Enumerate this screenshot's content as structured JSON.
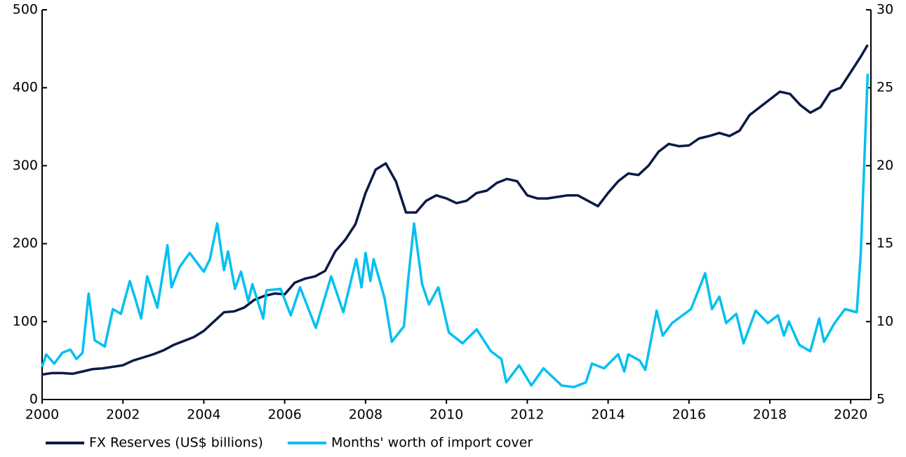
{
  "chart_data": {
    "type": "line",
    "xlim": [
      2000,
      2020.5
    ],
    "xticks": [
      2000,
      2002,
      2004,
      2006,
      2008,
      2010,
      2012,
      2014,
      2016,
      2018,
      2020
    ],
    "ylim": [
      0,
      500
    ],
    "yticks": [
      0,
      100,
      200,
      300,
      400,
      500
    ],
    "y2lim": [
      5,
      30
    ],
    "y2ticks": [
      5,
      10,
      15,
      20,
      25,
      30
    ],
    "legend": "bottom",
    "series": [
      {
        "name": "FX Reserves (US$ billions)",
        "color": "#0b1a45",
        "x": [
          2000,
          2000.25,
          2000.5,
          2000.75,
          2001,
          2001.25,
          2001.5,
          2001.75,
          2002,
          2002.25,
          2002.5,
          2002.75,
          2003,
          2003.25,
          2003.5,
          2003.75,
          2004,
          2004.25,
          2004.5,
          2004.75,
          2005,
          2005.25,
          2005.5,
          2005.75,
          2006,
          2006.25,
          2006.5,
          2006.75,
          2007,
          2007.25,
          2007.5,
          2007.75,
          2008,
          2008.25,
          2008.5,
          2008.75,
          2009,
          2009.25,
          2009.5,
          2009.75,
          2010,
          2010.25,
          2010.5,
          2010.75,
          2011,
          2011.25,
          2011.5,
          2011.75,
          2012,
          2012.25,
          2012.5,
          2012.75,
          2013,
          2013.25,
          2013.5,
          2013.75,
          2014,
          2014.25,
          2014.5,
          2014.75,
          2015,
          2015.25,
          2015.5,
          2015.75,
          2016,
          2016.25,
          2016.5,
          2016.75,
          2017,
          2017.25,
          2017.5,
          2017.75,
          2018,
          2018.25,
          2018.5,
          2018.75,
          2019,
          2019.25,
          2019.5,
          2019.75,
          2020,
          2020.25,
          2020.42
        ],
        "values": [
          32,
          34,
          34,
          33,
          36,
          39,
          40,
          42,
          44,
          50,
          54,
          58,
          63,
          70,
          75,
          80,
          88,
          100,
          112,
          113,
          118,
          128,
          133,
          136,
          135,
          150,
          155,
          158,
          165,
          190,
          205,
          225,
          265,
          295,
          303,
          280,
          240,
          240,
          255,
          262,
          258,
          252,
          255,
          265,
          268,
          278,
          283,
          280,
          262,
          258,
          258,
          260,
          262,
          262,
          255,
          248,
          265,
          280,
          290,
          288,
          300,
          318,
          328,
          325,
          326,
          335,
          338,
          342,
          338,
          345,
          365,
          375,
          385,
          395,
          392,
          378,
          368,
          375,
          395,
          400,
          420,
          440,
          455
        ]
      },
      {
        "name": "Months' worth of import cover",
        "color": "#00c0f0",
        "axis": "y2",
        "x": [
          2000,
          2000.1,
          2000.3,
          2000.5,
          2000.7,
          2000.85,
          2001,
          2001.15,
          2001.3,
          2001.55,
          2001.75,
          2001.95,
          2002.17,
          2002.3,
          2002.45,
          2002.6,
          2002.85,
          2003.1,
          2003.2,
          2003.4,
          2003.65,
          2004,
          2004.15,
          2004.33,
          2004.5,
          2004.6,
          2004.77,
          2004.92,
          2005.1,
          2005.2,
          2005.47,
          2005.55,
          2005.9,
          2006.15,
          2006.38,
          2006.77,
          2007.15,
          2007.45,
          2007.77,
          2007.9,
          2008,
          2008.12,
          2008.2,
          2008.47,
          2008.65,
          2008.95,
          2009.05,
          2009.2,
          2009.4,
          2009.57,
          2009.8,
          2010.06,
          2010.4,
          2010.75,
          2011.1,
          2011.36,
          2011.48,
          2011.8,
          2012.1,
          2012.4,
          2012.85,
          2013.15,
          2013.45,
          2013.6,
          2013.9,
          2014.25,
          2014.4,
          2014.5,
          2014.78,
          2014.92,
          2015.2,
          2015.35,
          2015.58,
          2016.05,
          2016.4,
          2016.57,
          2016.75,
          2016.92,
          2017.17,
          2017.35,
          2017.65,
          2017.95,
          2018.2,
          2018.35,
          2018.47,
          2018.73,
          2019,
          2019.22,
          2019.34,
          2019.6,
          2019.86,
          2020.15,
          2020.25,
          2020.42
        ],
        "values": [
          7.1,
          7.9,
          7.3,
          8.0,
          8.2,
          7.6,
          8.0,
          11.8,
          8.8,
          8.4,
          10.8,
          10.5,
          12.6,
          11.5,
          10.2,
          12.9,
          10.9,
          14.9,
          12.2,
          13.5,
          14.4,
          13.2,
          14.0,
          16.3,
          13.3,
          14.5,
          12.1,
          13.2,
          11.3,
          12.4,
          10.2,
          12.0,
          12.1,
          10.4,
          12.2,
          9.6,
          12.9,
          10.6,
          14.0,
          12.2,
          14.4,
          12.6,
          14.0,
          11.5,
          8.7,
          9.7,
          12.6,
          16.3,
          12.4,
          11.1,
          12.2,
          9.3,
          8.6,
          9.5,
          8.1,
          7.6,
          6.1,
          7.2,
          5.9,
          7.0,
          5.9,
          5.8,
          6.1,
          7.3,
          7.0,
          7.9,
          6.8,
          7.9,
          7.5,
          6.9,
          10.7,
          9.1,
          9.9,
          10.8,
          13.1,
          10.8,
          11.6,
          9.9,
          10.5,
          8.6,
          10.7,
          9.9,
          10.4,
          9.1,
          10.0,
          8.5,
          8.1,
          10.2,
          8.7,
          9.9,
          10.8,
          10.6,
          14.4,
          25.9
        ]
      }
    ]
  }
}
